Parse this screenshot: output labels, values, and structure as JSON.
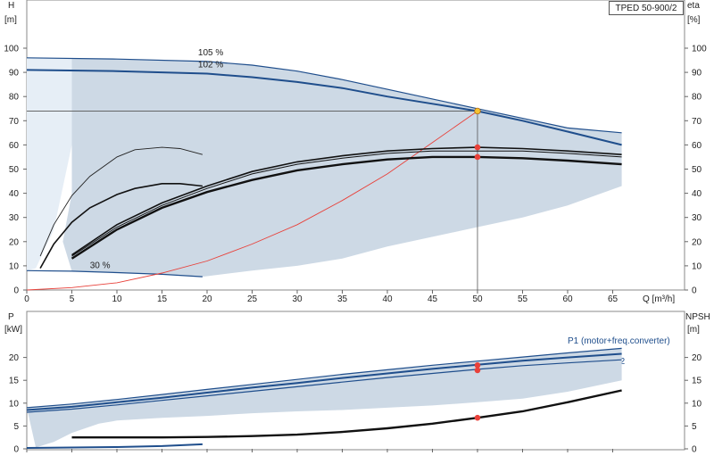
{
  "model": "TPED 50-900/2",
  "colors": {
    "band_fill": "#cdd9e5",
    "band_light": "#e6eef6",
    "curve_blue": "#1f4e8c",
    "system_curve": "#e8413a",
    "duty_point": "#e8413a",
    "duty_point_highlight": "#f5c232",
    "curve_black": "#111111",
    "thin_curve": "#222222"
  },
  "chart_data": [
    {
      "type": "line",
      "panel": "head",
      "title": "",
      "xlabel": "Q [m³/h]",
      "ylabel_left": "H",
      "ylabel_left_unit": "[m]",
      "ylabel_right": "eta",
      "ylabel_right_unit": "[%]",
      "xlim": [
        0,
        68
      ],
      "ylim": [
        0,
        110
      ],
      "x_ticks": [
        0,
        5,
        10,
        15,
        20,
        25,
        30,
        35,
        40,
        45,
        50,
        55,
        60,
        65
      ],
      "y_ticks": [
        0,
        10,
        20,
        30,
        40,
        50,
        60,
        70,
        80,
        90,
        100
      ],
      "grid": false,
      "duty_point": {
        "q": 50,
        "h": 74
      },
      "annotations": [
        {
          "text": "105 %",
          "x": 19,
          "y": 97
        },
        {
          "text": "102 %",
          "x": 19,
          "y": 92
        },
        {
          "text": "30 %",
          "x": 7,
          "y": 9
        }
      ],
      "series": [
        {
          "key": "max_head_105",
          "role": "curve_blue_thin",
          "x": [
            0,
            10,
            20,
            25,
            30,
            35,
            40,
            45,
            50,
            55,
            60,
            66
          ],
          "y": [
            96,
            95.5,
            94.5,
            93,
            90.5,
            87,
            83,
            79,
            75,
            71,
            67,
            65
          ]
        },
        {
          "key": "max_head_102",
          "role": "curve_blue_thick",
          "x": [
            0,
            10,
            20,
            25,
            30,
            35,
            40,
            45,
            50,
            55,
            60,
            66
          ],
          "y": [
            91,
            90.5,
            89.5,
            88,
            86,
            83.5,
            80,
            77,
            74,
            70,
            65.5,
            60
          ]
        },
        {
          "key": "min_head_30",
          "role": "curve_blue_thin",
          "x": [
            0,
            5,
            10,
            15,
            19.5
          ],
          "y": [
            8,
            7.8,
            7.2,
            6.5,
            5.5
          ]
        },
        {
          "key": "system_curve",
          "role": "system_curve",
          "x": [
            0,
            5,
            10,
            15,
            20,
            25,
            30,
            35,
            40,
            45,
            50
          ],
          "y": [
            0,
            1,
            3,
            7,
            12,
            19,
            27,
            37,
            48,
            61,
            74
          ]
        },
        {
          "key": "eta_thin",
          "role": "thin_curve",
          "x": [
            1.5,
            3,
            5,
            7,
            10,
            12,
            15,
            17,
            19.5
          ],
          "y": [
            14,
            27,
            39,
            47,
            55,
            58,
            59,
            58.5,
            56
          ]
        },
        {
          "key": "eta_medium",
          "role": "curve_black_medium",
          "x": [
            1.5,
            3,
            5,
            7,
            10,
            12,
            15,
            17,
            19.5
          ],
          "y": [
            9,
            19,
            28,
            34,
            39.5,
            42,
            44,
            44,
            43
          ]
        },
        {
          "key": "eta_upper",
          "role": "curve_black_medium",
          "x": [
            5,
            10,
            15,
            20,
            25,
            30,
            35,
            40,
            45,
            50,
            55,
            60,
            66
          ],
          "y": [
            14.5,
            27,
            36,
            43,
            49,
            53,
            55.5,
            57.5,
            58.5,
            59,
            58.5,
            57.5,
            56
          ]
        },
        {
          "key": "eta_middle",
          "role": "curve_black_thin",
          "x": [
            5,
            10,
            15,
            20,
            25,
            30,
            35,
            40,
            45,
            50,
            55,
            60,
            66
          ],
          "y": [
            14,
            26,
            35,
            42,
            48,
            52,
            54.5,
            56.5,
            57.5,
            57.5,
            57.5,
            56.5,
            55
          ]
        },
        {
          "key": "eta_lower",
          "role": "curve_black_thick",
          "x": [
            5,
            10,
            15,
            20,
            25,
            30,
            35,
            40,
            45,
            50,
            55,
            60,
            66
          ],
          "y": [
            13,
            25,
            34,
            40.5,
            45.5,
            49.5,
            52,
            54,
            55,
            55,
            54.5,
            53.5,
            52
          ]
        },
        {
          "key": "band_lower_edge",
          "role": "band_edge",
          "x": [
            19.5,
            25,
            30,
            35,
            40,
            45,
            50,
            55,
            60,
            66
          ],
          "y": [
            5.5,
            8,
            10,
            13,
            18,
            22,
            26,
            30,
            35,
            43
          ]
        }
      ],
      "markers": [
        {
          "x": 50,
          "y": 74,
          "color": "#f5c232"
        },
        {
          "x": 50,
          "y": 59,
          "color": "#e8413a"
        },
        {
          "x": 50,
          "y": 55,
          "color": "#e8413a"
        }
      ]
    },
    {
      "type": "line",
      "panel": "power",
      "title": "",
      "xlabel": "",
      "ylabel_left": "P",
      "ylabel_left_unit": "[kW]",
      "ylabel_right": "NPSH",
      "ylabel_right_unit": "[m]",
      "xlim": [
        0,
        68
      ],
      "ylim": [
        0,
        25
      ],
      "y_ticks": [
        0,
        5,
        10,
        15,
        20
      ],
      "grid": false,
      "legend": [
        "P1 (motor+freq.converter)",
        "P2"
      ],
      "series": [
        {
          "key": "p1_upper",
          "role": "curve_blue_thin",
          "x": [
            0,
            5,
            10,
            15,
            20,
            25,
            30,
            35,
            40,
            45,
            50,
            55,
            60,
            66
          ],
          "y": [
            9,
            9.8,
            10.8,
            11.9,
            13,
            14.1,
            15.2,
            16.3,
            17.3,
            18.3,
            19.2,
            20.1,
            21,
            22
          ]
        },
        {
          "key": "p1",
          "role": "curve_blue_thick",
          "x": [
            0,
            5,
            10,
            15,
            20,
            25,
            30,
            35,
            40,
            45,
            50,
            55,
            60,
            66
          ],
          "y": [
            8.5,
            9.2,
            10.2,
            11.2,
            12.3,
            13.4,
            14.4,
            15.5,
            16.5,
            17.5,
            18.4,
            19.3,
            20,
            20.8
          ]
        },
        {
          "key": "p2",
          "role": "curve_blue_thin",
          "x": [
            0,
            5,
            10,
            15,
            20,
            25,
            30,
            35,
            40,
            45,
            50,
            55,
            60,
            66
          ],
          "y": [
            8,
            8.7,
            9.6,
            10.6,
            11.6,
            12.6,
            13.6,
            14.6,
            15.6,
            16.5,
            17.4,
            18.2,
            18.8,
            19.5
          ]
        },
        {
          "key": "npsh",
          "role": "curve_black_thick",
          "x": [
            5,
            10,
            15,
            20,
            25,
            30,
            35,
            40,
            45,
            50,
            55,
            60,
            66
          ],
          "y": [
            2.5,
            2.5,
            2.5,
            2.6,
            2.8,
            3.1,
            3.7,
            4.5,
            5.5,
            6.8,
            8.2,
            10.2,
            12.8
          ]
        },
        {
          "key": "p_min",
          "role": "curve_blue_thick",
          "x": [
            0,
            5,
            10,
            15,
            19.5
          ],
          "y": [
            0.2,
            0.3,
            0.4,
            0.6,
            1
          ]
        },
        {
          "key": "band_lower_edge",
          "role": "band_edge",
          "x": [
            1,
            3,
            5,
            8,
            10,
            15,
            20,
            25,
            30,
            35,
            40,
            45,
            50,
            55,
            60,
            66
          ],
          "y": [
            0.3,
            1.5,
            3.5,
            5.5,
            6.2,
            6.8,
            7.2,
            7.8,
            8.2,
            8.5,
            9,
            9.5,
            10.2,
            11,
            12.5,
            15
          ]
        }
      ],
      "markers": [
        {
          "x": 50,
          "y": 18.3,
          "color": "#e8413a"
        },
        {
          "x": 50,
          "y": 17.2,
          "color": "#e8413a"
        },
        {
          "x": 50,
          "y": 6.8,
          "color": "#e8413a"
        }
      ]
    }
  ]
}
